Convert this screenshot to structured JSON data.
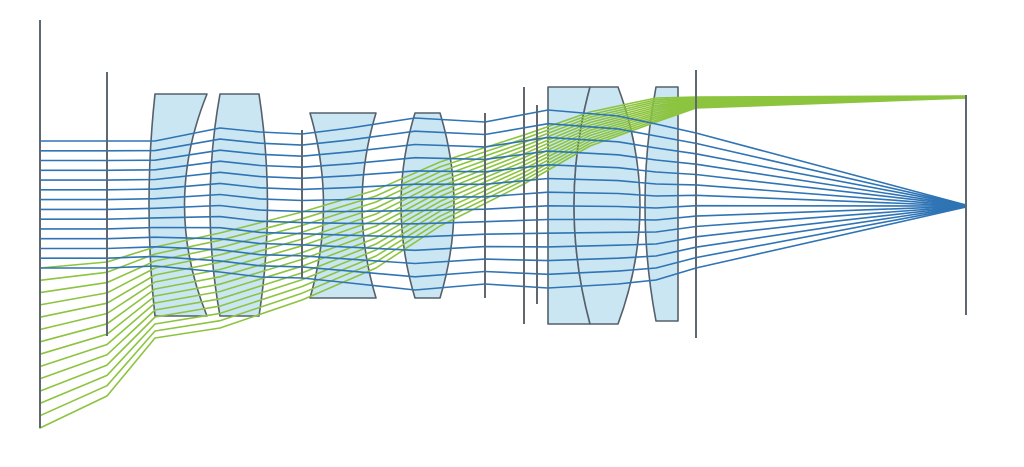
{
  "diagram": {
    "kind": "optical-lens-ray-trace",
    "colors": {
      "background": "#ffffff",
      "on_axis_rays": "#2f74b5",
      "off_axis_rays": "#8cc43f",
      "lens_fill": "#cbe6f3",
      "lens_outline": "#55606b",
      "plane_lines": "#5f6770"
    },
    "lens_elements": [
      "lens-1",
      "lens-2",
      "lens-3",
      "lens-4",
      "lens-5",
      "lens-6",
      "lens-7"
    ],
    "ray_bundles": [
      {
        "name": "on-axis",
        "color_key": "on_axis_rays",
        "ray_count": 14
      },
      {
        "name": "off-axis",
        "color_key": "off_axis_rays",
        "ray_count": 14
      }
    ]
  }
}
